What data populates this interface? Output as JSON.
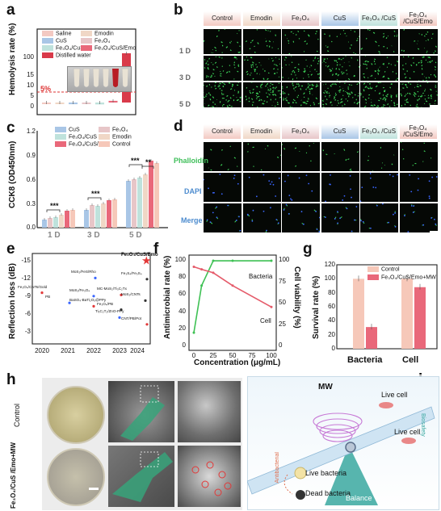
{
  "panels": {
    "a": "a",
    "b": "b",
    "c": "c",
    "d": "d",
    "e": "e",
    "f": "f",
    "g": "g",
    "h": "h",
    "i": "i"
  },
  "colors": {
    "saline": "#f3c9c2",
    "emodin": "#f0d7c6",
    "cus": "#a9c6e6",
    "fe3o4": "#e7c6c8",
    "fe3o4cus": "#bfe2dc",
    "full": "#e9687a",
    "water": "#d93a4a",
    "cell_green": "#3fd65a",
    "red_line": "#e55b6a"
  },
  "a": {
    "ylabel": "Hemolysis rate (%)",
    "threshold_label": "5%",
    "legend": [
      "Saline",
      "Emodin",
      "CuS",
      "Fe₃O₄",
      "Fe₃O₄/CuS",
      "Fe₃O₄/CuS/Emo",
      "Distilled water"
    ],
    "yticks": [
      "0",
      "5",
      "10",
      "15",
      "100"
    ]
  },
  "b": {
    "headers": [
      "Control",
      "Emodin",
      "Fe₃O₄",
      "CuS",
      "Fe₃O₄ /CuS",
      "Fe₃O₄ /CuS/Emo"
    ],
    "rows": [
      "1 D",
      "3 D",
      "5 D"
    ]
  },
  "c": {
    "ylabel": "CCK8 (OD450nm)",
    "legend": [
      "CuS",
      "Fe₃O₄",
      "Fe₃O₄/CuS",
      "Emodin",
      "Fe₃O₄/CuS/Emo",
      "Control"
    ],
    "groups": [
      "1 D",
      "3 D",
      "5 D"
    ],
    "yticks": [
      "0.0",
      "0.3",
      "0.6",
      "0.9",
      "1.2"
    ],
    "sig": [
      "***",
      "***",
      "***",
      "**"
    ]
  },
  "d": {
    "headers": [
      "Control",
      "Emodin",
      "Fe₃O₄",
      "CuS",
      "Fe₃O₄ /CuS",
      "Fe₃O₄ /CuS/Emo"
    ],
    "rows": [
      "Phalloidin",
      "DAPI",
      "Merge"
    ]
  },
  "e": {
    "ylabel": "Reflection loss (dB)",
    "yticks": [
      "-15",
      "-12",
      "-9",
      "-6",
      "-3"
    ],
    "xticks": [
      "2020",
      "2021",
      "2022",
      "2023",
      "2024"
    ],
    "highlight": "Fe₃O₄/CuS/Emo",
    "labels": [
      "Fe₃O₄/CuS/Emo",
      "MoS₂/FeS/Rho",
      "Fe₃O₄/CNTs/Gold",
      "Fe₃S₄/Fe₃S₄",
      "MoS₂/Fe₃O₄",
      "MC-MoS₂/Ti₃C₂Tx",
      "MoS₂/CNTs",
      "PB",
      "BaSO₄-BaTi₂O₅@PPy",
      "Fe₃O₄/PB",
      "Ti₃C₂T₂/ZnO-PPy",
      "CNT/PB/Pot"
    ]
  },
  "f": {
    "ylabel": "Antimicrobial rate (%)",
    "ylabel2": "Cell viability (%)",
    "xlabel": "Concentration (μg/mL)",
    "xticks": [
      "0",
      "25",
      "50",
      "75",
      "100"
    ],
    "yticks": [
      "0",
      "20",
      "40",
      "60",
      "80",
      "100"
    ],
    "yticks2": [
      "0",
      "25",
      "50",
      "75",
      "100"
    ],
    "series_bacteria": "Bacteria",
    "series_cell": "Cell"
  },
  "g": {
    "ylabel": "Survival rate (%)",
    "legend": [
      "Control",
      "Fe₃O₄/CuS/Emo+MW"
    ],
    "categories": [
      "Bacteria",
      "Cell"
    ],
    "yticks": [
      "0",
      "20",
      "40",
      "60",
      "80",
      "100",
      "120"
    ]
  },
  "h": {
    "row1": "Control",
    "row2": "Fe₃O₄/CuS /Emo+MW"
  },
  "i": {
    "mw": "MW",
    "live_cell_1": "Live cell",
    "live_cell_2": "Live cell",
    "live_bacteria": "Live bacteria",
    "dead_bacteria": "Dead bacteria",
    "balance": "Balance",
    "antibacterial": "Antibacterial",
    "biosafety": "Biosafety"
  },
  "chart_data": [
    {
      "type": "bar",
      "panel": "a",
      "ylabel": "Hemolysis rate (%)",
      "categories": [
        "Saline",
        "Emodin",
        "CuS",
        "Fe₃O₄",
        "Fe₃O₄/CuS",
        "Fe₃O₄/CuS/Emo",
        "Distilled water"
      ],
      "values": [
        -0.5,
        -0.4,
        -0.8,
        -0.5,
        -0.9,
        0.8,
        100
      ],
      "threshold": 5
    },
    {
      "type": "bar",
      "panel": "c",
      "ylabel": "CCK8 (OD450nm)",
      "categories": [
        "1 D",
        "3 D",
        "5 D"
      ],
      "ylim": [
        0,
        1.2
      ],
      "series": [
        {
          "name": "CuS",
          "values": [
            0.1,
            0.22,
            0.58
          ]
        },
        {
          "name": "Fe₃O₄",
          "values": [
            0.12,
            0.28,
            0.6
          ]
        },
        {
          "name": "Fe₃O₄/CuS",
          "values": [
            0.13,
            0.27,
            0.62
          ]
        },
        {
          "name": "Emodin",
          "values": [
            0.16,
            0.3,
            0.66
          ]
        },
        {
          "name": "Fe₃O₄/CuS/Emo",
          "values": [
            0.21,
            0.34,
            0.83
          ]
        },
        {
          "name": "Control",
          "values": [
            0.22,
            0.35,
            0.8
          ]
        }
      ]
    },
    {
      "type": "scatter",
      "panel": "e",
      "ylabel": "Reflection loss (dB)",
      "points": [
        {
          "label": "Fe₃O₄/CuS/Emo",
          "x": 2024,
          "y": -14.8
        },
        {
          "label": "MoS₂/FeS/Rho",
          "x": 2022,
          "y": -11.8
        },
        {
          "label": "Fe₃O₄/CNTs/Gold",
          "x": 2020,
          "y": -9.2
        },
        {
          "label": "Fe₃S₄/Fe₃S₄",
          "x": 2024,
          "y": -11.6
        },
        {
          "label": "MoS₂/Fe₃O₄",
          "x": 2022,
          "y": -8.6
        },
        {
          "label": "MC-MoS₂/Ti₃C₂Tx",
          "x": 2023,
          "y": -8.8
        },
        {
          "label": "MoS₂/CNTs",
          "x": 2024,
          "y": -7.8
        },
        {
          "label": "PB",
          "x": 2021,
          "y": -7.4
        },
        {
          "label": "BaSO₄-BaTi₂O₅@PPy",
          "x": 2022,
          "y": -6.8
        },
        {
          "label": "Fe₃O₄/PB",
          "x": 2023,
          "y": -6.2
        },
        {
          "label": "Ti₃C₂T₂/ZnO-PPy",
          "x": 2023,
          "y": -4.8
        },
        {
          "label": "CNT/PB/Pot",
          "x": 2024,
          "y": -3.6
        }
      ]
    },
    {
      "type": "line",
      "panel": "f",
      "xlabel": "Concentration (μg/mL)",
      "x": [
        0,
        10,
        25,
        50,
        100
      ],
      "series": [
        {
          "name": "Bacteria",
          "axis": "right",
          "values": [
            15,
            70,
            99,
            99,
            99
          ]
        },
        {
          "name": "Cell",
          "axis": "left",
          "values": [
            92,
            89,
            85,
            70,
            45
          ]
        }
      ]
    },
    {
      "type": "bar",
      "panel": "g",
      "ylabel": "Survival rate (%)",
      "categories": [
        "Bacteria",
        "Cell"
      ],
      "ylim": [
        0,
        120
      ],
      "series": [
        {
          "name": "Control",
          "values": [
            100,
            100
          ]
        },
        {
          "name": "Fe₃O₄/CuS/Emo+MW",
          "values": [
            31,
            88
          ]
        }
      ]
    }
  ]
}
